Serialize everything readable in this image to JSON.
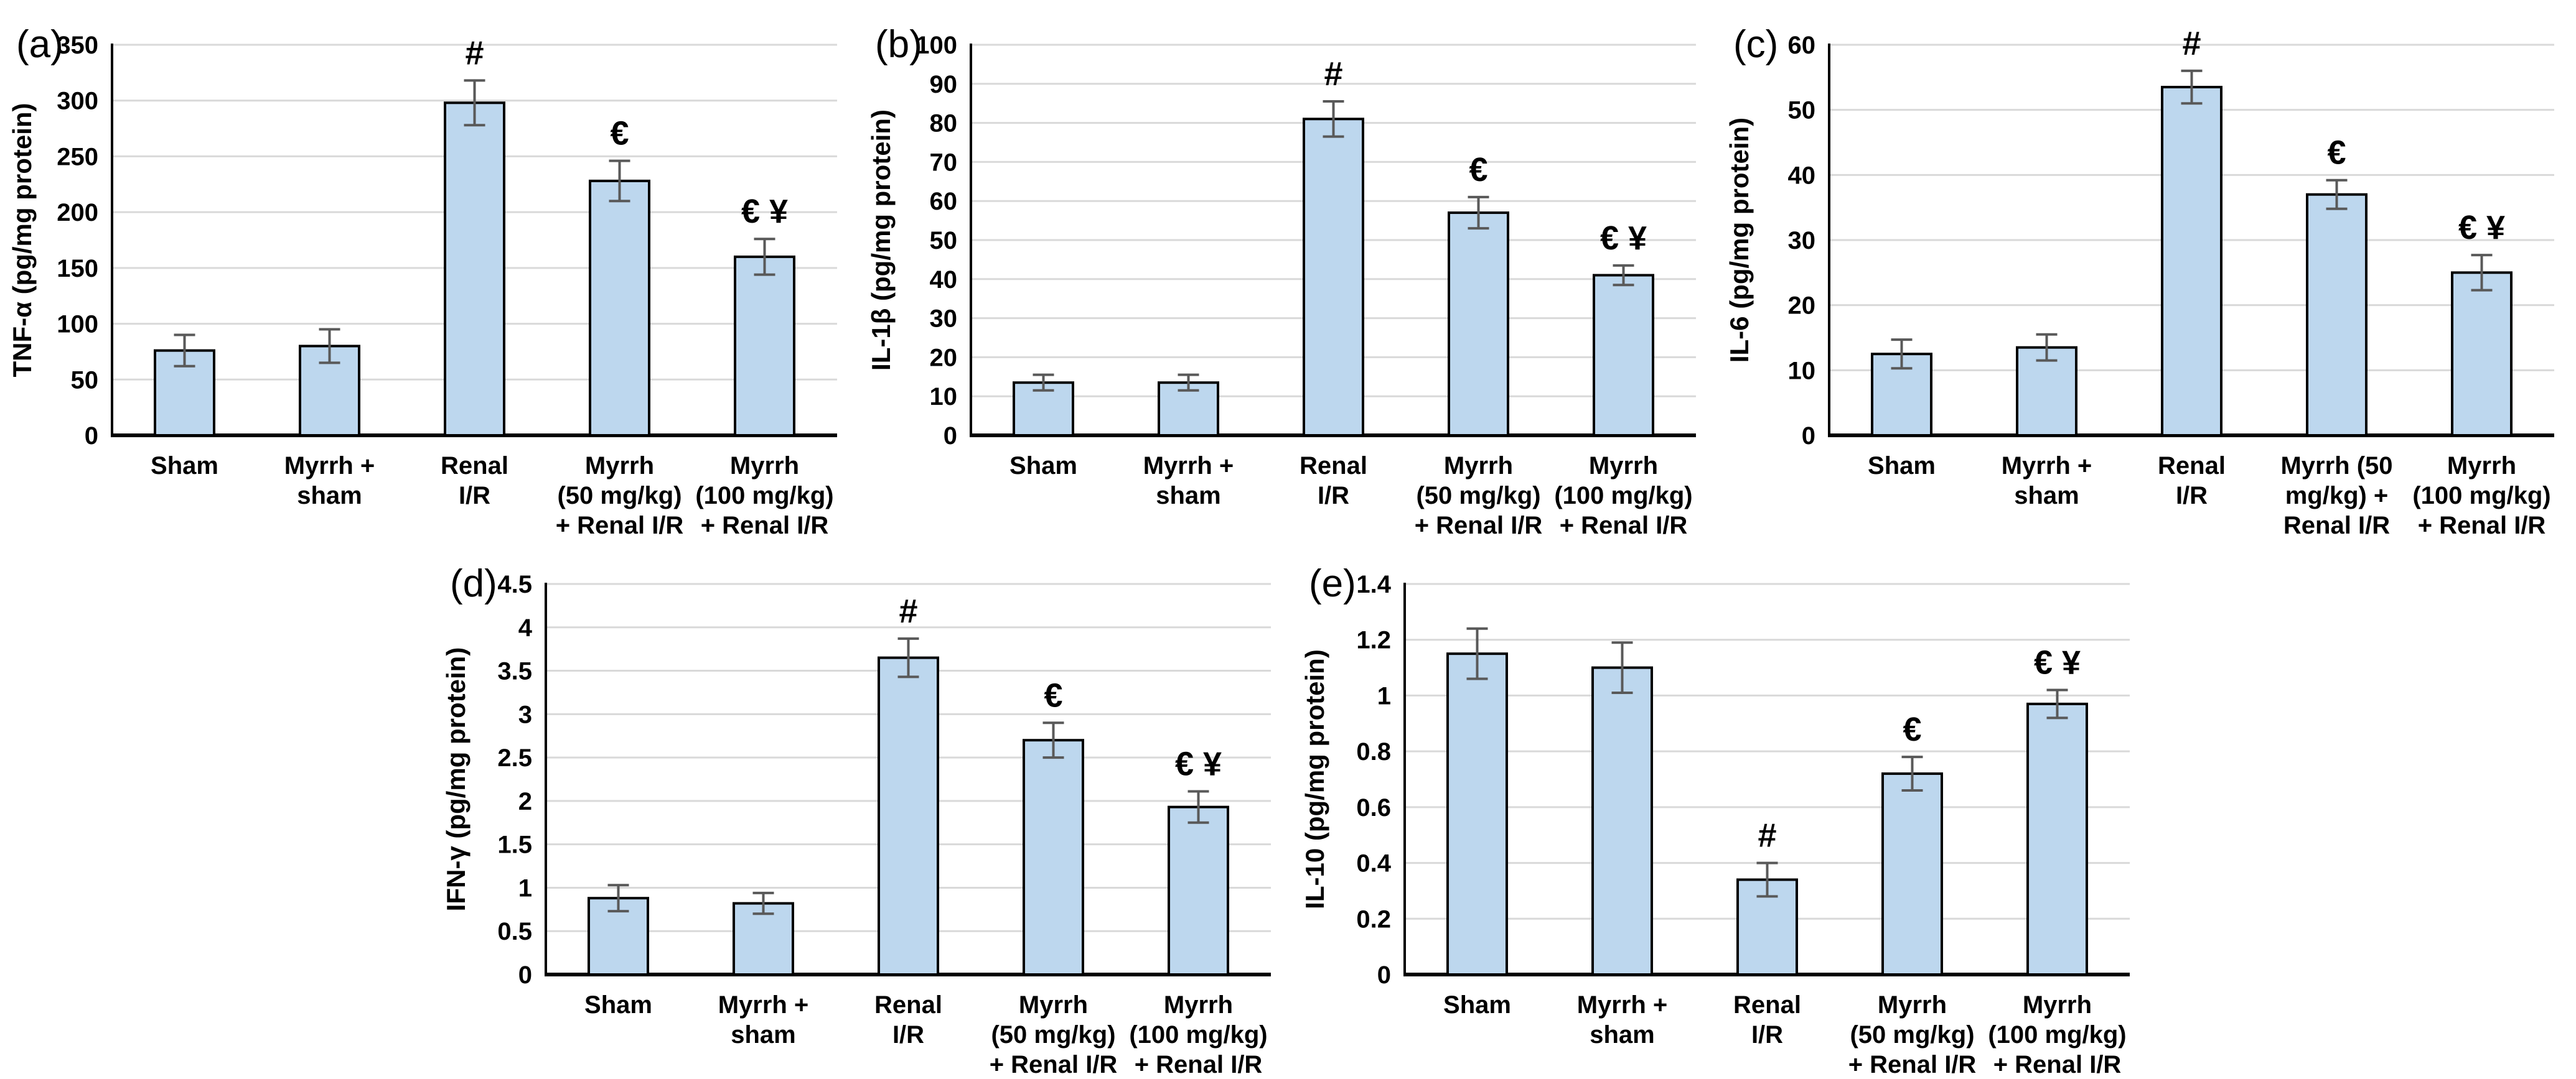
{
  "style": {
    "background": "#FFFFFF",
    "bar_fill": "#BDD7EE",
    "bar_stroke": "#000000",
    "error_color": "#595959",
    "grid_color": "#D9D9D9",
    "axis_color": "#000000",
    "text_color": "#000000"
  },
  "chart_data": [
    {
      "id": "a",
      "panel_label": "(a)",
      "type": "bar",
      "title": "",
      "xlabel": "",
      "ylabel": "TNF-α (pg/mg protein)",
      "ylim": [
        0,
        350
      ],
      "ystep": 50,
      "yticks": [
        "0",
        "50",
        "100",
        "150",
        "200",
        "250",
        "300",
        "350"
      ],
      "grid": true,
      "legend": "none",
      "categories": [
        "Sham",
        "Myrrh + sham",
        "Renal I/R",
        "Myrrh (50 mg/kg) + Renal I/R",
        "Myrrh (100 mg/kg) + Renal I/R"
      ],
      "category_lines": [
        [
          "Sham"
        ],
        [
          "Myrrh +",
          "sham"
        ],
        [
          "Renal",
          "I/R"
        ],
        [
          "Myrrh",
          "(50 mg/kg)",
          "+ Renal I/R"
        ],
        [
          "Myrrh",
          "(100 mg/kg)",
          "+ Renal I/R"
        ]
      ],
      "values": [
        76,
        80,
        298,
        228,
        160
      ],
      "errors": [
        14,
        15,
        20,
        18,
        16
      ],
      "sig": [
        "",
        "",
        "#",
        "€",
        "€ ¥"
      ]
    },
    {
      "id": "b",
      "panel_label": "(b)",
      "type": "bar",
      "title": "",
      "xlabel": "",
      "ylabel": "IL-1β (pg/mg protein)",
      "ylim": [
        0,
        100
      ],
      "ystep": 10,
      "yticks": [
        "0",
        "10",
        "20",
        "30",
        "40",
        "50",
        "60",
        "70",
        "80",
        "90",
        "100"
      ],
      "grid": true,
      "legend": "none",
      "categories": [
        "Sham",
        "Myrrh + sham",
        "Renal I/R",
        "Myrrh (50 mg/kg) + Renal I/R",
        "Myrrh (100 mg/kg) + Renal I/R"
      ],
      "category_lines": [
        [
          "Sham"
        ],
        [
          "Myrrh +",
          "sham"
        ],
        [
          "Renal",
          "I/R"
        ],
        [
          "Myrrh",
          "(50 mg/kg)",
          "+ Renal I/R"
        ],
        [
          "Myrrh",
          "(100 mg/kg)",
          "+ Renal I/R"
        ]
      ],
      "values": [
        13.5,
        13.5,
        81,
        57,
        41
      ],
      "errors": [
        2,
        2,
        4.5,
        4,
        2.5
      ],
      "sig": [
        "",
        "",
        "#",
        "€",
        "€ ¥"
      ]
    },
    {
      "id": "c",
      "panel_label": "(c)",
      "type": "bar",
      "title": "",
      "xlabel": "",
      "ylabel": "IL-6 (pg/mg protein)",
      "ylim": [
        0,
        60
      ],
      "ystep": 10,
      "yticks": [
        "0",
        "10",
        "20",
        "30",
        "40",
        "50",
        "60"
      ],
      "grid": true,
      "legend": "none",
      "categories": [
        "Sham",
        "Myrrh + sham",
        "Renal I/R",
        "Myrrh (50 mg/kg) + Renal I/R",
        "Myrrh (100 mg/kg) + Renal I/R"
      ],
      "category_lines": [
        [
          "Sham"
        ],
        [
          "Myrrh +",
          "sham"
        ],
        [
          "Renal",
          "I/R"
        ],
        [
          "Myrrh (50",
          "mg/kg) +",
          "Renal I/R"
        ],
        [
          "Myrrh",
          "(100 mg/kg)",
          "+ Renal I/R"
        ]
      ],
      "values": [
        12.5,
        13.5,
        53.5,
        37,
        25
      ],
      "errors": [
        2.2,
        2,
        2.5,
        2.2,
        2.7
      ],
      "sig": [
        "",
        "",
        "#",
        "€",
        "€ ¥"
      ]
    },
    {
      "id": "d",
      "panel_label": "(d)",
      "type": "bar",
      "title": "",
      "xlabel": "",
      "ylabel": "IFN-γ (pg/mg protein)",
      "ylim": [
        0,
        4.5
      ],
      "ystep": 0.5,
      "yticks": [
        "0",
        "0.5",
        "1",
        "1.5",
        "2",
        "2.5",
        "3",
        "3.5",
        "4",
        "4.5"
      ],
      "grid": true,
      "legend": "none",
      "categories": [
        "Sham",
        "Myrrh + sham",
        "Renal I/R",
        "Myrrh (50 mg/kg) + Renal I/R",
        "Myrrh (100 mg/kg) + Renal I/R"
      ],
      "category_lines": [
        [
          "Sham"
        ],
        [
          "Myrrh +",
          "sham"
        ],
        [
          "Renal",
          "I/R"
        ],
        [
          "Myrrh",
          "(50 mg/kg)",
          "+ Renal I/R"
        ],
        [
          "Myrrh",
          "(100 mg/kg)",
          "+ Renal I/R"
        ]
      ],
      "values": [
        0.88,
        0.82,
        3.65,
        2.7,
        1.93
      ],
      "errors": [
        0.15,
        0.12,
        0.22,
        0.2,
        0.18
      ],
      "sig": [
        "",
        "",
        "#",
        "€",
        "€ ¥"
      ]
    },
    {
      "id": "e",
      "panel_label": "(e)",
      "type": "bar",
      "title": "",
      "xlabel": "",
      "ylabel": "IL-10 (pg/mg protein)",
      "ylim": [
        0,
        1.4
      ],
      "ystep": 0.2,
      "yticks": [
        "0",
        "0.2",
        "0.4",
        "0.6",
        "0.8",
        "1",
        "1.2",
        "1.4"
      ],
      "grid": true,
      "legend": "none",
      "categories": [
        "Sham",
        "Myrrh + sham",
        "Renal I/R",
        "Myrrh (50 mg/kg) + Renal I/R",
        "Myrrh (100 mg/kg) + Renal I/R"
      ],
      "category_lines": [
        [
          "Sham"
        ],
        [
          "Myrrh +",
          "sham"
        ],
        [
          "Renal",
          "I/R"
        ],
        [
          "Myrrh",
          "(50 mg/kg)",
          "+ Renal I/R"
        ],
        [
          "Myrrh",
          "(100 mg/kg)",
          "+ Renal I/R"
        ]
      ],
      "values": [
        1.15,
        1.1,
        0.34,
        0.72,
        0.97
      ],
      "errors": [
        0.09,
        0.09,
        0.06,
        0.06,
        0.05
      ],
      "sig": [
        "",
        "",
        "#",
        "€",
        "€ ¥"
      ]
    }
  ]
}
